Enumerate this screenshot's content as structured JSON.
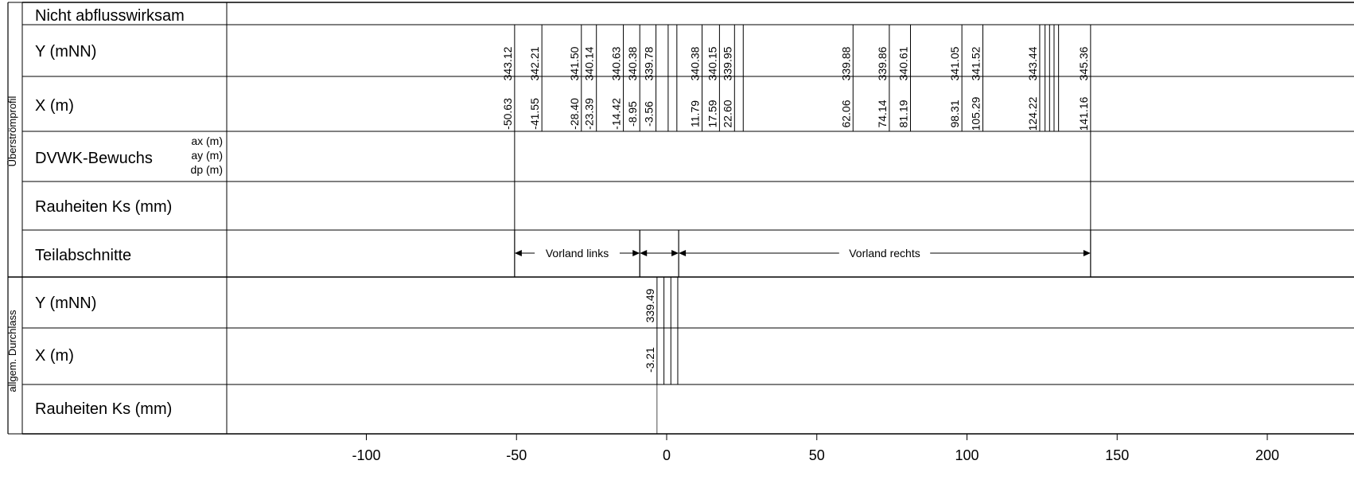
{
  "rows": {
    "nicht_abfluss": "Nicht abflusswirksam",
    "y": "Y (mNN)",
    "x": "X (m)",
    "dvwk": "DVWK-Bewuchs",
    "dvwk_ax": "ax (m)",
    "dvwk_ay": "ay (m)",
    "dvwk_dp": "dp (m)",
    "rauheiten": "Rauheiten Ks (mm)",
    "teilabschnitte": "Teilabschnitte",
    "y2": "Y (mNN)",
    "x2": "X (m)",
    "rauheiten2": "Rauheiten Ks (mm)"
  },
  "side_labels": {
    "ueberstroem": "Überströmprofil",
    "durchlass": "allgem. Durchlass"
  },
  "profile_points": [
    {
      "x": "-50.63",
      "y": "343.12"
    },
    {
      "x": "-41.55",
      "y": "342.21"
    },
    {
      "x": "-28.40",
      "y": "341.50"
    },
    {
      "x": "-23.39",
      "y": "340.14"
    },
    {
      "x": "-14.42",
      "y": "340.63"
    },
    {
      "x": "-8.95",
      "y": "340.38"
    },
    {
      "x": "-3.56",
      "y": "339.78"
    },
    {
      "x": "11.79",
      "y": "340.38"
    },
    {
      "x": "17.59",
      "y": "340.15"
    },
    {
      "x": "22.60",
      "y": "339.95"
    },
    {
      "x": "62.06",
      "y": "339.88"
    },
    {
      "x": "74.14",
      "y": "339.86"
    },
    {
      "x": "81.19",
      "y": "340.61"
    },
    {
      "x": "98.31",
      "y": "341.05"
    },
    {
      "x": "105.29",
      "y": "341.52"
    },
    {
      "x": "124.22",
      "y": "343.44"
    },
    {
      "x": "141.16",
      "y": "345.36"
    }
  ],
  "profile_unlabeled_x": [
    0.5,
    3.4,
    25.5,
    126.0,
    127.5,
    129.0,
    130.5
  ],
  "teilabschnitte": [
    {
      "from": -50.63,
      "to": -8.95,
      "label": "Vorland links"
    },
    {
      "from": -8.95,
      "to": 4.0,
      "label": ""
    },
    {
      "from": 4.0,
      "to": 141.16,
      "label": "Vorland rechts"
    }
  ],
  "durchlass": {
    "points": [
      {
        "x": "-3.21",
        "y": "339.49"
      }
    ],
    "unlabeled_x": [
      -0.9,
      1.4,
      3.7
    ]
  },
  "axis": {
    "ticks": [
      -100,
      -50,
      0,
      50,
      100,
      150,
      200
    ],
    "domain": [
      -147.5,
      222.5
    ]
  }
}
